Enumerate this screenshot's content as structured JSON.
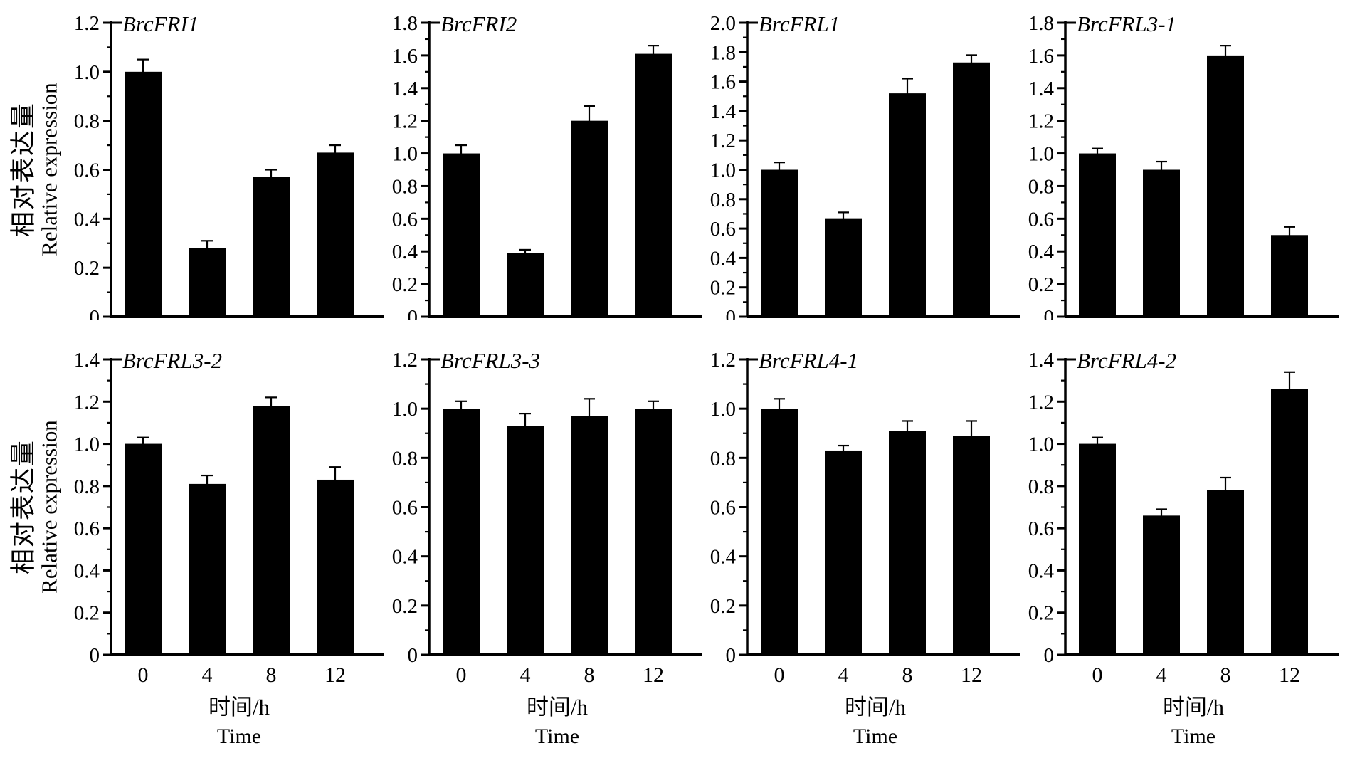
{
  "figure": {
    "ylabel_zh": "相对表达量",
    "ylabel_en": "Relative expression",
    "xlabel_zh": "时间/h",
    "xlabel_en": "Time"
  },
  "chart_data": [
    {
      "type": "bar",
      "title": "BrcFRI1",
      "categories": [
        "0",
        "4",
        "8",
        "12"
      ],
      "values": [
        1.0,
        0.28,
        0.57,
        0.67
      ],
      "errors": [
        0.05,
        0.03,
        0.03,
        0.03
      ],
      "ylim": [
        0,
        1.2
      ],
      "ytick_step": 0.2,
      "minor_tick_step": 0.1,
      "xlabel": "时间/h Time",
      "ylabel": "相对表达量 Relative expression",
      "bar_color": "#000000",
      "grid": false,
      "x_tick_labels_visible": false
    },
    {
      "type": "bar",
      "title": "BrcFRI2",
      "categories": [
        "0",
        "4",
        "8",
        "12"
      ],
      "values": [
        1.0,
        0.39,
        1.2,
        1.61
      ],
      "errors": [
        0.05,
        0.02,
        0.09,
        0.05
      ],
      "ylim": [
        0,
        1.8
      ],
      "ytick_step": 0.2,
      "minor_tick_step": 0.1,
      "xlabel": "时间/h Time",
      "ylabel": "相对表达量 Relative expression",
      "bar_color": "#000000",
      "grid": false,
      "x_tick_labels_visible": false
    },
    {
      "type": "bar",
      "title": "BrcFRL1",
      "categories": [
        "0",
        "4",
        "8",
        "12"
      ],
      "values": [
        1.0,
        0.67,
        1.52,
        1.73
      ],
      "errors": [
        0.05,
        0.04,
        0.1,
        0.05
      ],
      "ylim": [
        0,
        2.0
      ],
      "ytick_step": 0.2,
      "minor_tick_step": 0.1,
      "xlabel": "时间/h Time",
      "ylabel": "相对表达量 Relative expression",
      "bar_color": "#000000",
      "grid": false,
      "x_tick_labels_visible": false
    },
    {
      "type": "bar",
      "title": "BrcFRL3-1",
      "categories": [
        "0",
        "4",
        "8",
        "12"
      ],
      "values": [
        1.0,
        0.9,
        1.6,
        0.5
      ],
      "errors": [
        0.03,
        0.05,
        0.06,
        0.05
      ],
      "ylim": [
        0,
        1.8
      ],
      "ytick_step": 0.2,
      "minor_tick_step": 0.1,
      "xlabel": "时间/h Time",
      "ylabel": "相对表达量 Relative expression",
      "bar_color": "#000000",
      "grid": false,
      "x_tick_labels_visible": false
    },
    {
      "type": "bar",
      "title": "BrcFRL3-2",
      "categories": [
        "0",
        "4",
        "8",
        "12"
      ],
      "values": [
        1.0,
        0.81,
        1.18,
        0.83
      ],
      "errors": [
        0.03,
        0.04,
        0.04,
        0.06
      ],
      "ylim": [
        0,
        1.4
      ],
      "ytick_step": 0.2,
      "minor_tick_step": 0.1,
      "xlabel": "时间/h Time",
      "ylabel": "相对表达量 Relative expression",
      "bar_color": "#000000",
      "grid": false,
      "x_tick_labels_visible": true
    },
    {
      "type": "bar",
      "title": "BrcFRL3-3",
      "categories": [
        "0",
        "4",
        "8",
        "12"
      ],
      "values": [
        1.0,
        0.93,
        0.97,
        1.0
      ],
      "errors": [
        0.03,
        0.05,
        0.07,
        0.03
      ],
      "ylim": [
        0,
        1.2
      ],
      "ytick_step": 0.2,
      "minor_tick_step": 0.1,
      "xlabel": "时间/h Time",
      "ylabel": "相对表达量 Relative expression",
      "bar_color": "#000000",
      "grid": false,
      "x_tick_labels_visible": true
    },
    {
      "type": "bar",
      "title": "BrcFRL4-1",
      "categories": [
        "0",
        "4",
        "8",
        "12"
      ],
      "values": [
        1.0,
        0.83,
        0.91,
        0.89
      ],
      "errors": [
        0.04,
        0.02,
        0.04,
        0.06
      ],
      "ylim": [
        0,
        1.2
      ],
      "ytick_step": 0.2,
      "minor_tick_step": 0.1,
      "xlabel": "时间/h Time",
      "ylabel": "相对表达量 Relative expression",
      "bar_color": "#000000",
      "grid": false,
      "x_tick_labels_visible": true
    },
    {
      "type": "bar",
      "title": "BrcFRL4-2",
      "categories": [
        "0",
        "4",
        "8",
        "12"
      ],
      "values": [
        1.0,
        0.66,
        0.78,
        1.26
      ],
      "errors": [
        0.03,
        0.03,
        0.06,
        0.08
      ],
      "ylim": [
        0,
        1.4
      ],
      "ytick_step": 0.2,
      "minor_tick_step": 0.1,
      "xlabel": "时间/h Time",
      "ylabel": "相对表达量 Relative expression",
      "bar_color": "#000000",
      "grid": false,
      "x_tick_labels_visible": true
    }
  ]
}
